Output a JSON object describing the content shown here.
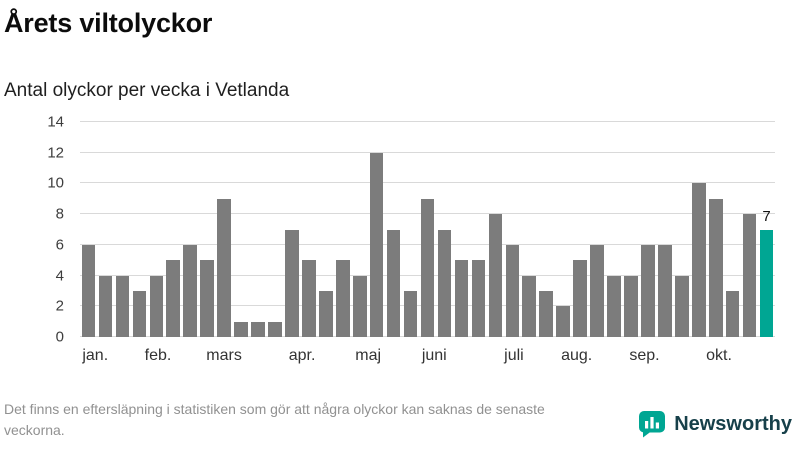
{
  "title": "Årets viltolyckor",
  "subtitle": "Antal olyckor per vecka i Vetlanda",
  "footer": "Det finns en eftersläpning i statistiken som gör att några olyckor kan saknas de senaste veckorna.",
  "brand": {
    "name": "Newsworthy",
    "accent_color": "#00a693",
    "wordmark_color": "#17404a"
  },
  "chart_data": {
    "type": "bar",
    "title": "Årets viltolyckor",
    "subtitle": "Antal olyckor per vecka i Vetlanda",
    "unit": "olyckor per vecka",
    "values": [
      6,
      4,
      4,
      3,
      4,
      5,
      6,
      5,
      9,
      1,
      1,
      1,
      7,
      5,
      3,
      5,
      4,
      12,
      7,
      3,
      9,
      7,
      5,
      5,
      8,
      6,
      4,
      3,
      2,
      5,
      6,
      4,
      4,
      6,
      6,
      4,
      10,
      9,
      3,
      8,
      7
    ],
    "highlight_index": 40,
    "highlight_label": "7",
    "bar_color": "#7c7c7c",
    "highlight_color": "#00a693",
    "grid": true,
    "ylim": [
      0,
      14
    ],
    "yticks": [
      0,
      2,
      4,
      6,
      8,
      10,
      12,
      14
    ],
    "months": [
      {
        "label": "jan.",
        "week": 0.4
      },
      {
        "label": "feb.",
        "week": 4.1
      },
      {
        "label": "mars",
        "week": 8.0
      },
      {
        "label": "apr.",
        "week": 12.6
      },
      {
        "label": "maj",
        "week": 16.5
      },
      {
        "label": "juni",
        "week": 20.4
      },
      {
        "label": "juli",
        "week": 25.1
      },
      {
        "label": "aug.",
        "week": 28.8
      },
      {
        "label": "sep.",
        "week": 32.8
      },
      {
        "label": "okt.",
        "week": 37.2
      }
    ]
  }
}
